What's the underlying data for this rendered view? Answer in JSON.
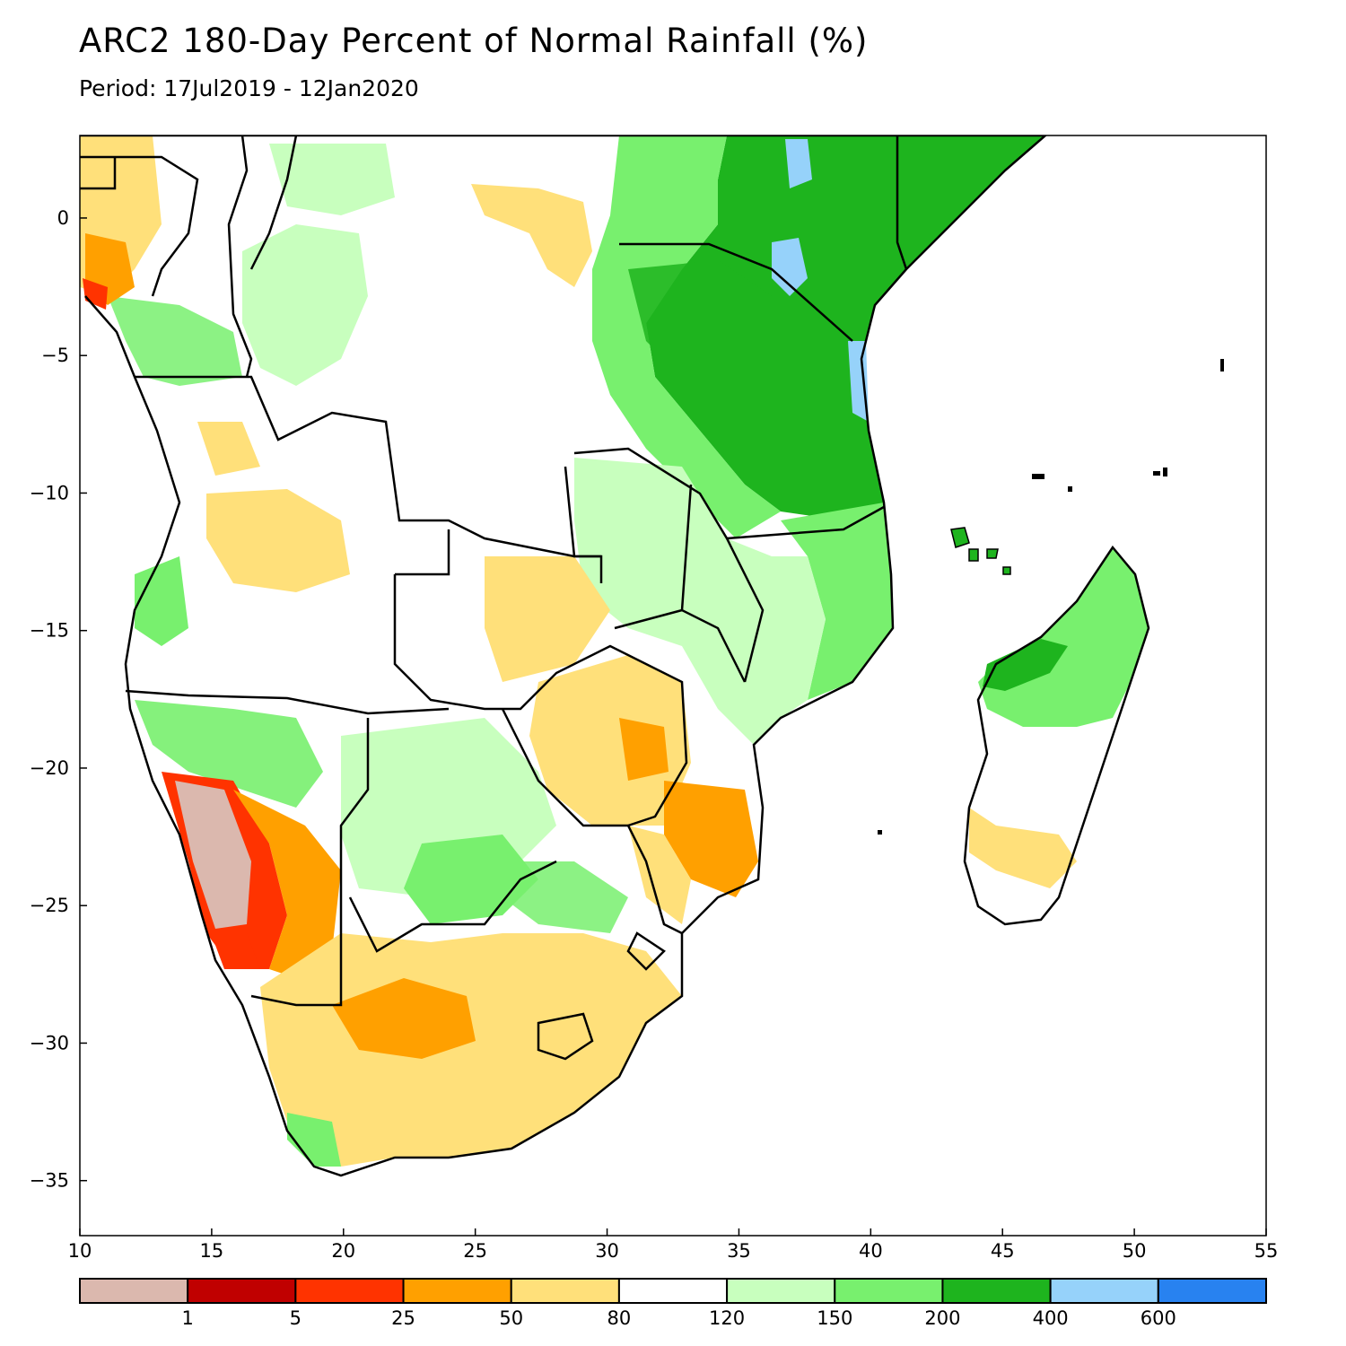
{
  "title": "ARC2 180-Day Percent of Normal Rainfall (%)",
  "subtitle": "Period: 17Jul2019 - 12Jan2020",
  "map": {
    "lon_range": [
      10,
      55
    ],
    "lat_range": [
      -37,
      3
    ],
    "x_ticks": [
      "10",
      "15",
      "20",
      "25",
      "30",
      "35",
      "40",
      "45",
      "50",
      "55"
    ],
    "y_ticks": [
      "0",
      "−5",
      "−10",
      "−15",
      "−20",
      "−25",
      "−30",
      "−35"
    ],
    "x_tick_values": [
      10,
      15,
      20,
      25,
      30,
      35,
      40,
      45,
      50,
      55
    ],
    "y_tick_values": [
      0,
      -5,
      -10,
      -15,
      -20,
      -25,
      -30,
      -35
    ]
  },
  "legend": {
    "bins": [
      {
        "color": "#dbb8ae"
      },
      {
        "color": "#c00000"
      },
      {
        "color": "#ff3300"
      },
      {
        "color": "#ffa000"
      },
      {
        "color": "#ffe07a"
      },
      {
        "color": "#ffffff"
      },
      {
        "color": "#c8ffbe"
      },
      {
        "color": "#78f06e"
      },
      {
        "color": "#1eb41e"
      },
      {
        "color": "#96d2fa"
      },
      {
        "color": "#2882f0"
      }
    ],
    "labels": [
      "1",
      "5",
      "25",
      "50",
      "80",
      "120",
      "150",
      "200",
      "400",
      "600"
    ]
  },
  "regions": {
    "east_africa_wet": "#1eb41e",
    "tanzania_wet": "#78f06e",
    "namib_dry": "#dbb8ae",
    "south_africa_dry": "#ffe07a"
  }
}
